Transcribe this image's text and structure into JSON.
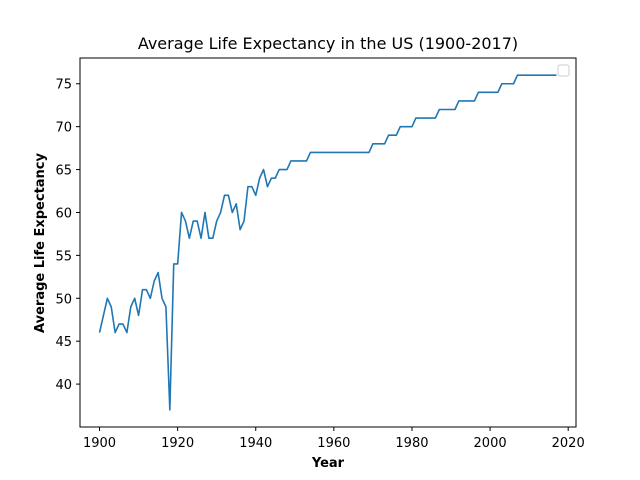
{
  "chart_data": {
    "type": "line",
    "title": "Average Life Expectancy in the US (1900-2017)",
    "xlabel": "Year",
    "ylabel": "Average Life Expectancy",
    "xlim": [
      1895,
      2022
    ],
    "ylim": [
      35,
      78
    ],
    "xticks": [
      1900,
      1920,
      1940,
      1960,
      1980,
      2000,
      2020
    ],
    "yticks": [
      40,
      45,
      50,
      55,
      60,
      65,
      70,
      75
    ],
    "grid": false,
    "legend": "top-right, empty",
    "series": [
      {
        "color": "#1f77b4",
        "x": [
          1900,
          1901,
          1902,
          1903,
          1904,
          1905,
          1906,
          1907,
          1908,
          1909,
          1910,
          1911,
          1912,
          1913,
          1914,
          1915,
          1916,
          1917,
          1918,
          1919,
          1920,
          1921,
          1922,
          1923,
          1924,
          1925,
          1926,
          1927,
          1928,
          1929,
          1930,
          1931,
          1932,
          1933,
          1934,
          1935,
          1936,
          1937,
          1938,
          1939,
          1940,
          1941,
          1942,
          1943,
          1944,
          1945,
          1946,
          1947,
          1948,
          1949,
          1950,
          1951,
          1952,
          1953,
          1954,
          1955,
          1956,
          1957,
          1958,
          1959,
          1960,
          1961,
          1962,
          1963,
          1964,
          1965,
          1966,
          1967,
          1968,
          1969,
          1970,
          1971,
          1972,
          1973,
          1974,
          1975,
          1976,
          1977,
          1978,
          1979,
          1980,
          1981,
          1982,
          1983,
          1984,
          1985,
          1986,
          1987,
          1988,
          1989,
          1990,
          1991,
          1992,
          1993,
          1994,
          1995,
          1996,
          1997,
          1998,
          1999,
          2000,
          2001,
          2002,
          2003,
          2004,
          2005,
          2006,
          2007,
          2008,
          2009,
          2010,
          2011,
          2012,
          2013,
          2014,
          2015,
          2016,
          2017
        ],
        "values": [
          46,
          48,
          50,
          49,
          46,
          47,
          47,
          46,
          49,
          50,
          48,
          51,
          51,
          50,
          52,
          53,
          50,
          49,
          37,
          54,
          54,
          60,
          59,
          57,
          59,
          59,
          57,
          60,
          57,
          57,
          59,
          60,
          62,
          62,
          60,
          61,
          58,
          59,
          63,
          63,
          62,
          64,
          65,
          63,
          64,
          64,
          65,
          65,
          65,
          66,
          66,
          66,
          66,
          66,
          67,
          67,
          67,
          67,
          67,
          67,
          67,
          67,
          67,
          67,
          67,
          67,
          67,
          67,
          67,
          67,
          68,
          68,
          68,
          68,
          69,
          69,
          69,
          70,
          70,
          70,
          70,
          71,
          71,
          71,
          71,
          71,
          71,
          72,
          72,
          72,
          72,
          72,
          73,
          73,
          73,
          73,
          73,
          74,
          74,
          74,
          74,
          74,
          74,
          75,
          75,
          75,
          75,
          76,
          76,
          76,
          76,
          76,
          76,
          76,
          76,
          76,
          76,
          76
        ]
      }
    ]
  }
}
